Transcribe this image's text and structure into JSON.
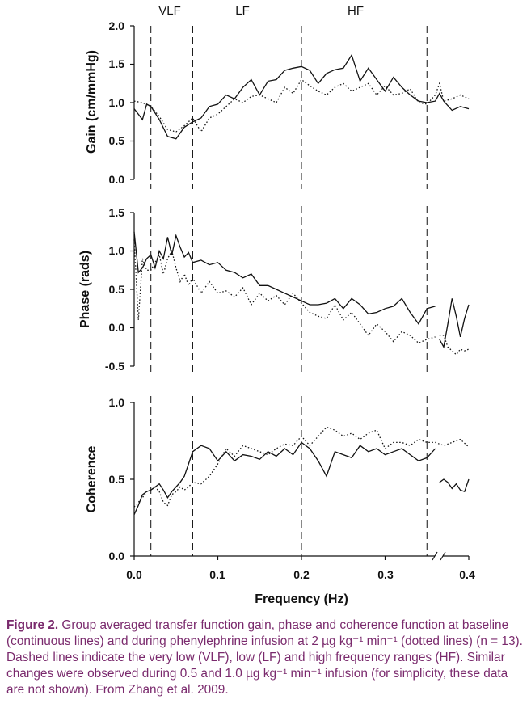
{
  "caption": {
    "label": "Figure 2.",
    "text": "Group averaged transfer function gain, phase and coherence function at baseline (continuous lines) and during phenylephrine infusion at 2 µg kg⁻¹ min⁻¹ (dotted lines) (n = 13). Dashed lines indicate the very low (VLF), low (LF) and high frequency ranges (HF). Similar changes were observed during 0.5 and 1.0 µg kg⁻¹ min⁻¹ infusion (for simplicity, these data are not shown). From Zhang et al. 2009."
  },
  "chart_data": [
    {
      "type": "line",
      "panel": "gain",
      "ylabel": "Gain (cm/mmHg)",
      "ylim": [
        0.0,
        2.0
      ],
      "yticks": [
        "0.0",
        "0.5",
        "1.0",
        "1.5",
        "2.0"
      ],
      "band_labels": [
        "VLF",
        "LF",
        "HF"
      ],
      "band_boundaries": [
        0.02,
        0.07,
        0.2,
        0.35
      ],
      "series": [
        {
          "name": "baseline",
          "style": "solid",
          "x": [
            0.0,
            0.01,
            0.015,
            0.02,
            0.03,
            0.04,
            0.05,
            0.06,
            0.07,
            0.08,
            0.09,
            0.1,
            0.11,
            0.12,
            0.13,
            0.14,
            0.15,
            0.16,
            0.17,
            0.18,
            0.19,
            0.2,
            0.21,
            0.22,
            0.23,
            0.24,
            0.25,
            0.26,
            0.27,
            0.28,
            0.29,
            0.3,
            0.31,
            0.32,
            0.33,
            0.34,
            0.35,
            0.36,
            0.365,
            0.37,
            0.38,
            0.39,
            0.4
          ],
          "y": [
            0.92,
            0.78,
            0.98,
            0.95,
            0.78,
            0.56,
            0.53,
            0.68,
            0.75,
            0.8,
            0.95,
            0.98,
            1.1,
            1.05,
            1.2,
            1.3,
            1.1,
            1.28,
            1.3,
            1.42,
            1.45,
            1.47,
            1.42,
            1.25,
            1.38,
            1.43,
            1.45,
            1.62,
            1.28,
            1.45,
            1.3,
            1.15,
            1.33,
            1.2,
            1.1,
            1.02,
            1.0,
            1.02,
            1.12,
            1.02,
            0.9,
            0.95,
            0.92
          ]
        },
        {
          "name": "phenylephrine",
          "style": "dotted",
          "x": [
            0.0,
            0.01,
            0.02,
            0.03,
            0.04,
            0.05,
            0.06,
            0.07,
            0.08,
            0.09,
            0.1,
            0.11,
            0.12,
            0.13,
            0.14,
            0.15,
            0.16,
            0.17,
            0.18,
            0.19,
            0.2,
            0.21,
            0.22,
            0.23,
            0.24,
            0.25,
            0.26,
            0.27,
            0.28,
            0.29,
            0.3,
            0.31,
            0.32,
            0.33,
            0.34,
            0.35,
            0.36,
            0.365,
            0.37,
            0.38,
            0.39,
            0.4
          ],
          "y": [
            1.02,
            1.0,
            0.95,
            0.82,
            0.65,
            0.62,
            0.7,
            0.8,
            0.62,
            0.8,
            0.85,
            0.95,
            1.05,
            1.0,
            1.08,
            1.1,
            1.05,
            1.0,
            1.2,
            1.12,
            1.3,
            1.22,
            1.15,
            1.1,
            1.2,
            1.25,
            1.15,
            1.2,
            1.25,
            1.1,
            1.22,
            1.1,
            1.12,
            1.18,
            1.0,
            0.98,
            1.1,
            1.25,
            1.02,
            1.05,
            1.1,
            1.05
          ]
        }
      ]
    },
    {
      "type": "line",
      "panel": "phase",
      "ylabel": "Phase (rads)",
      "ylim": [
        -0.5,
        1.5
      ],
      "yticks": [
        "-0.5",
        "0.0",
        "0.5",
        "1.0",
        "1.5"
      ],
      "band_boundaries": [
        0.02,
        0.07,
        0.2,
        0.35
      ],
      "series": [
        {
          "name": "baseline",
          "style": "solid",
          "x": [
            0.0,
            0.005,
            0.01,
            0.015,
            0.02,
            0.025,
            0.03,
            0.035,
            0.04,
            0.045,
            0.05,
            0.055,
            0.06,
            0.065,
            0.07,
            0.08,
            0.09,
            0.1,
            0.11,
            0.12,
            0.13,
            0.14,
            0.15,
            0.16,
            0.17,
            0.18,
            0.19,
            0.2,
            0.21,
            0.22,
            0.23,
            0.24,
            0.25,
            0.26,
            0.27,
            0.28,
            0.29,
            0.3,
            0.31,
            0.32,
            0.33,
            0.34,
            0.35,
            0.36
          ],
          "y": [
            1.25,
            0.72,
            0.78,
            0.9,
            0.95,
            0.78,
            1.0,
            0.9,
            1.18,
            0.95,
            1.2,
            1.05,
            0.92,
            0.98,
            0.85,
            0.88,
            0.82,
            0.85,
            0.75,
            0.72,
            0.65,
            0.7,
            0.55,
            0.55,
            0.5,
            0.45,
            0.4,
            0.35,
            0.3,
            0.3,
            0.32,
            0.38,
            0.25,
            0.38,
            0.3,
            0.18,
            0.2,
            0.25,
            0.28,
            0.38,
            0.2,
            0.05,
            0.25,
            0.28
          ]
        },
        {
          "name": "baseline-tail",
          "style": "solid",
          "x": [
            0.365,
            0.37,
            0.375,
            0.38,
            0.385,
            0.39,
            0.395,
            0.4
          ],
          "y": [
            -0.15,
            -0.25,
            0.05,
            0.38,
            0.15,
            -0.12,
            0.12,
            0.3
          ]
        },
        {
          "name": "phenylephrine",
          "style": "dotted",
          "x": [
            0.0,
            0.005,
            0.01,
            0.015,
            0.02,
            0.025,
            0.03,
            0.035,
            0.04,
            0.045,
            0.05,
            0.055,
            0.06,
            0.065,
            0.07,
            0.08,
            0.09,
            0.1,
            0.11,
            0.12,
            0.13,
            0.14,
            0.15,
            0.16,
            0.17,
            0.18,
            0.19,
            0.2,
            0.21,
            0.22,
            0.23,
            0.24,
            0.25,
            0.26,
            0.27,
            0.28,
            0.29,
            0.3,
            0.31,
            0.32,
            0.33,
            0.34,
            0.35,
            0.36
          ],
          "y": [
            1.15,
            0.1,
            0.9,
            0.75,
            0.75,
            0.85,
            0.95,
            0.7,
            0.9,
            1.0,
            0.78,
            0.6,
            0.7,
            0.55,
            0.65,
            0.45,
            0.6,
            0.45,
            0.48,
            0.4,
            0.52,
            0.3,
            0.45,
            0.35,
            0.42,
            0.3,
            0.45,
            0.32,
            0.2,
            0.15,
            0.12,
            0.3,
            0.1,
            0.2,
            0.05,
            -0.1,
            0.05,
            -0.05,
            -0.18,
            -0.05,
            -0.1,
            -0.2,
            -0.15,
            -0.12
          ]
        },
        {
          "name": "phenylephrine-tail",
          "style": "dotted",
          "x": [
            0.365,
            0.37,
            0.375,
            0.38,
            0.385,
            0.39,
            0.395,
            0.4
          ],
          "y": [
            -0.1,
            -0.1,
            -0.25,
            -0.3,
            -0.35,
            -0.28,
            -0.3,
            -0.28
          ]
        }
      ]
    },
    {
      "type": "line",
      "panel": "coherence",
      "ylabel": "Coherence",
      "xlabel": "Frequency (Hz)",
      "ylim": [
        0.0,
        1.0
      ],
      "yticks": [
        "0.0",
        "0.5",
        "1.0"
      ],
      "xticks": [
        "0.0",
        "0.1",
        "0.2",
        "0.3",
        "0.4"
      ],
      "band_boundaries": [
        0.02,
        0.07,
        0.2,
        0.35
      ],
      "series": [
        {
          "name": "baseline",
          "style": "solid",
          "x": [
            0.0,
            0.005,
            0.01,
            0.015,
            0.02,
            0.025,
            0.03,
            0.035,
            0.04,
            0.045,
            0.05,
            0.055,
            0.06,
            0.065,
            0.07,
            0.08,
            0.09,
            0.1,
            0.11,
            0.12,
            0.13,
            0.14,
            0.15,
            0.16,
            0.17,
            0.18,
            0.19,
            0.2,
            0.21,
            0.22,
            0.23,
            0.24,
            0.25,
            0.26,
            0.27,
            0.28,
            0.29,
            0.3,
            0.31,
            0.32,
            0.33,
            0.34,
            0.35,
            0.36
          ],
          "y": [
            0.27,
            0.33,
            0.4,
            0.42,
            0.43,
            0.45,
            0.47,
            0.43,
            0.38,
            0.42,
            0.45,
            0.48,
            0.52,
            0.6,
            0.68,
            0.72,
            0.7,
            0.62,
            0.68,
            0.62,
            0.66,
            0.65,
            0.63,
            0.68,
            0.65,
            0.7,
            0.66,
            0.74,
            0.7,
            0.62,
            0.52,
            0.68,
            0.66,
            0.64,
            0.72,
            0.68,
            0.7,
            0.66,
            0.68,
            0.7,
            0.66,
            0.62,
            0.64,
            0.7
          ]
        },
        {
          "name": "baseline-tail",
          "style": "solid",
          "x": [
            0.365,
            0.37,
            0.375,
            0.38,
            0.385,
            0.39,
            0.395,
            0.4
          ],
          "y": [
            0.48,
            0.5,
            0.48,
            0.44,
            0.47,
            0.43,
            0.42,
            0.5
          ]
        },
        {
          "name": "phenylephrine",
          "style": "dotted",
          "x": [
            0.0,
            0.005,
            0.01,
            0.015,
            0.02,
            0.025,
            0.03,
            0.035,
            0.04,
            0.045,
            0.05,
            0.055,
            0.06,
            0.065,
            0.07,
            0.08,
            0.09,
            0.1,
            0.11,
            0.12,
            0.13,
            0.14,
            0.15,
            0.16,
            0.17,
            0.18,
            0.19,
            0.2,
            0.21,
            0.22,
            0.23,
            0.24,
            0.25,
            0.26,
            0.27,
            0.28,
            0.29,
            0.3,
            0.31,
            0.32,
            0.33,
            0.34,
            0.35,
            0.36,
            0.37,
            0.38,
            0.39,
            0.4
          ],
          "y": [
            0.32,
            0.35,
            0.38,
            0.42,
            0.43,
            0.45,
            0.42,
            0.35,
            0.33,
            0.4,
            0.42,
            0.45,
            0.43,
            0.45,
            0.48,
            0.47,
            0.52,
            0.6,
            0.7,
            0.65,
            0.72,
            0.7,
            0.68,
            0.66,
            0.7,
            0.73,
            0.72,
            0.78,
            0.72,
            0.78,
            0.84,
            0.82,
            0.78,
            0.8,
            0.76,
            0.8,
            0.82,
            0.7,
            0.74,
            0.74,
            0.72,
            0.76,
            0.74,
            0.74,
            0.72,
            0.74,
            0.76,
            0.71
          ]
        }
      ]
    }
  ]
}
